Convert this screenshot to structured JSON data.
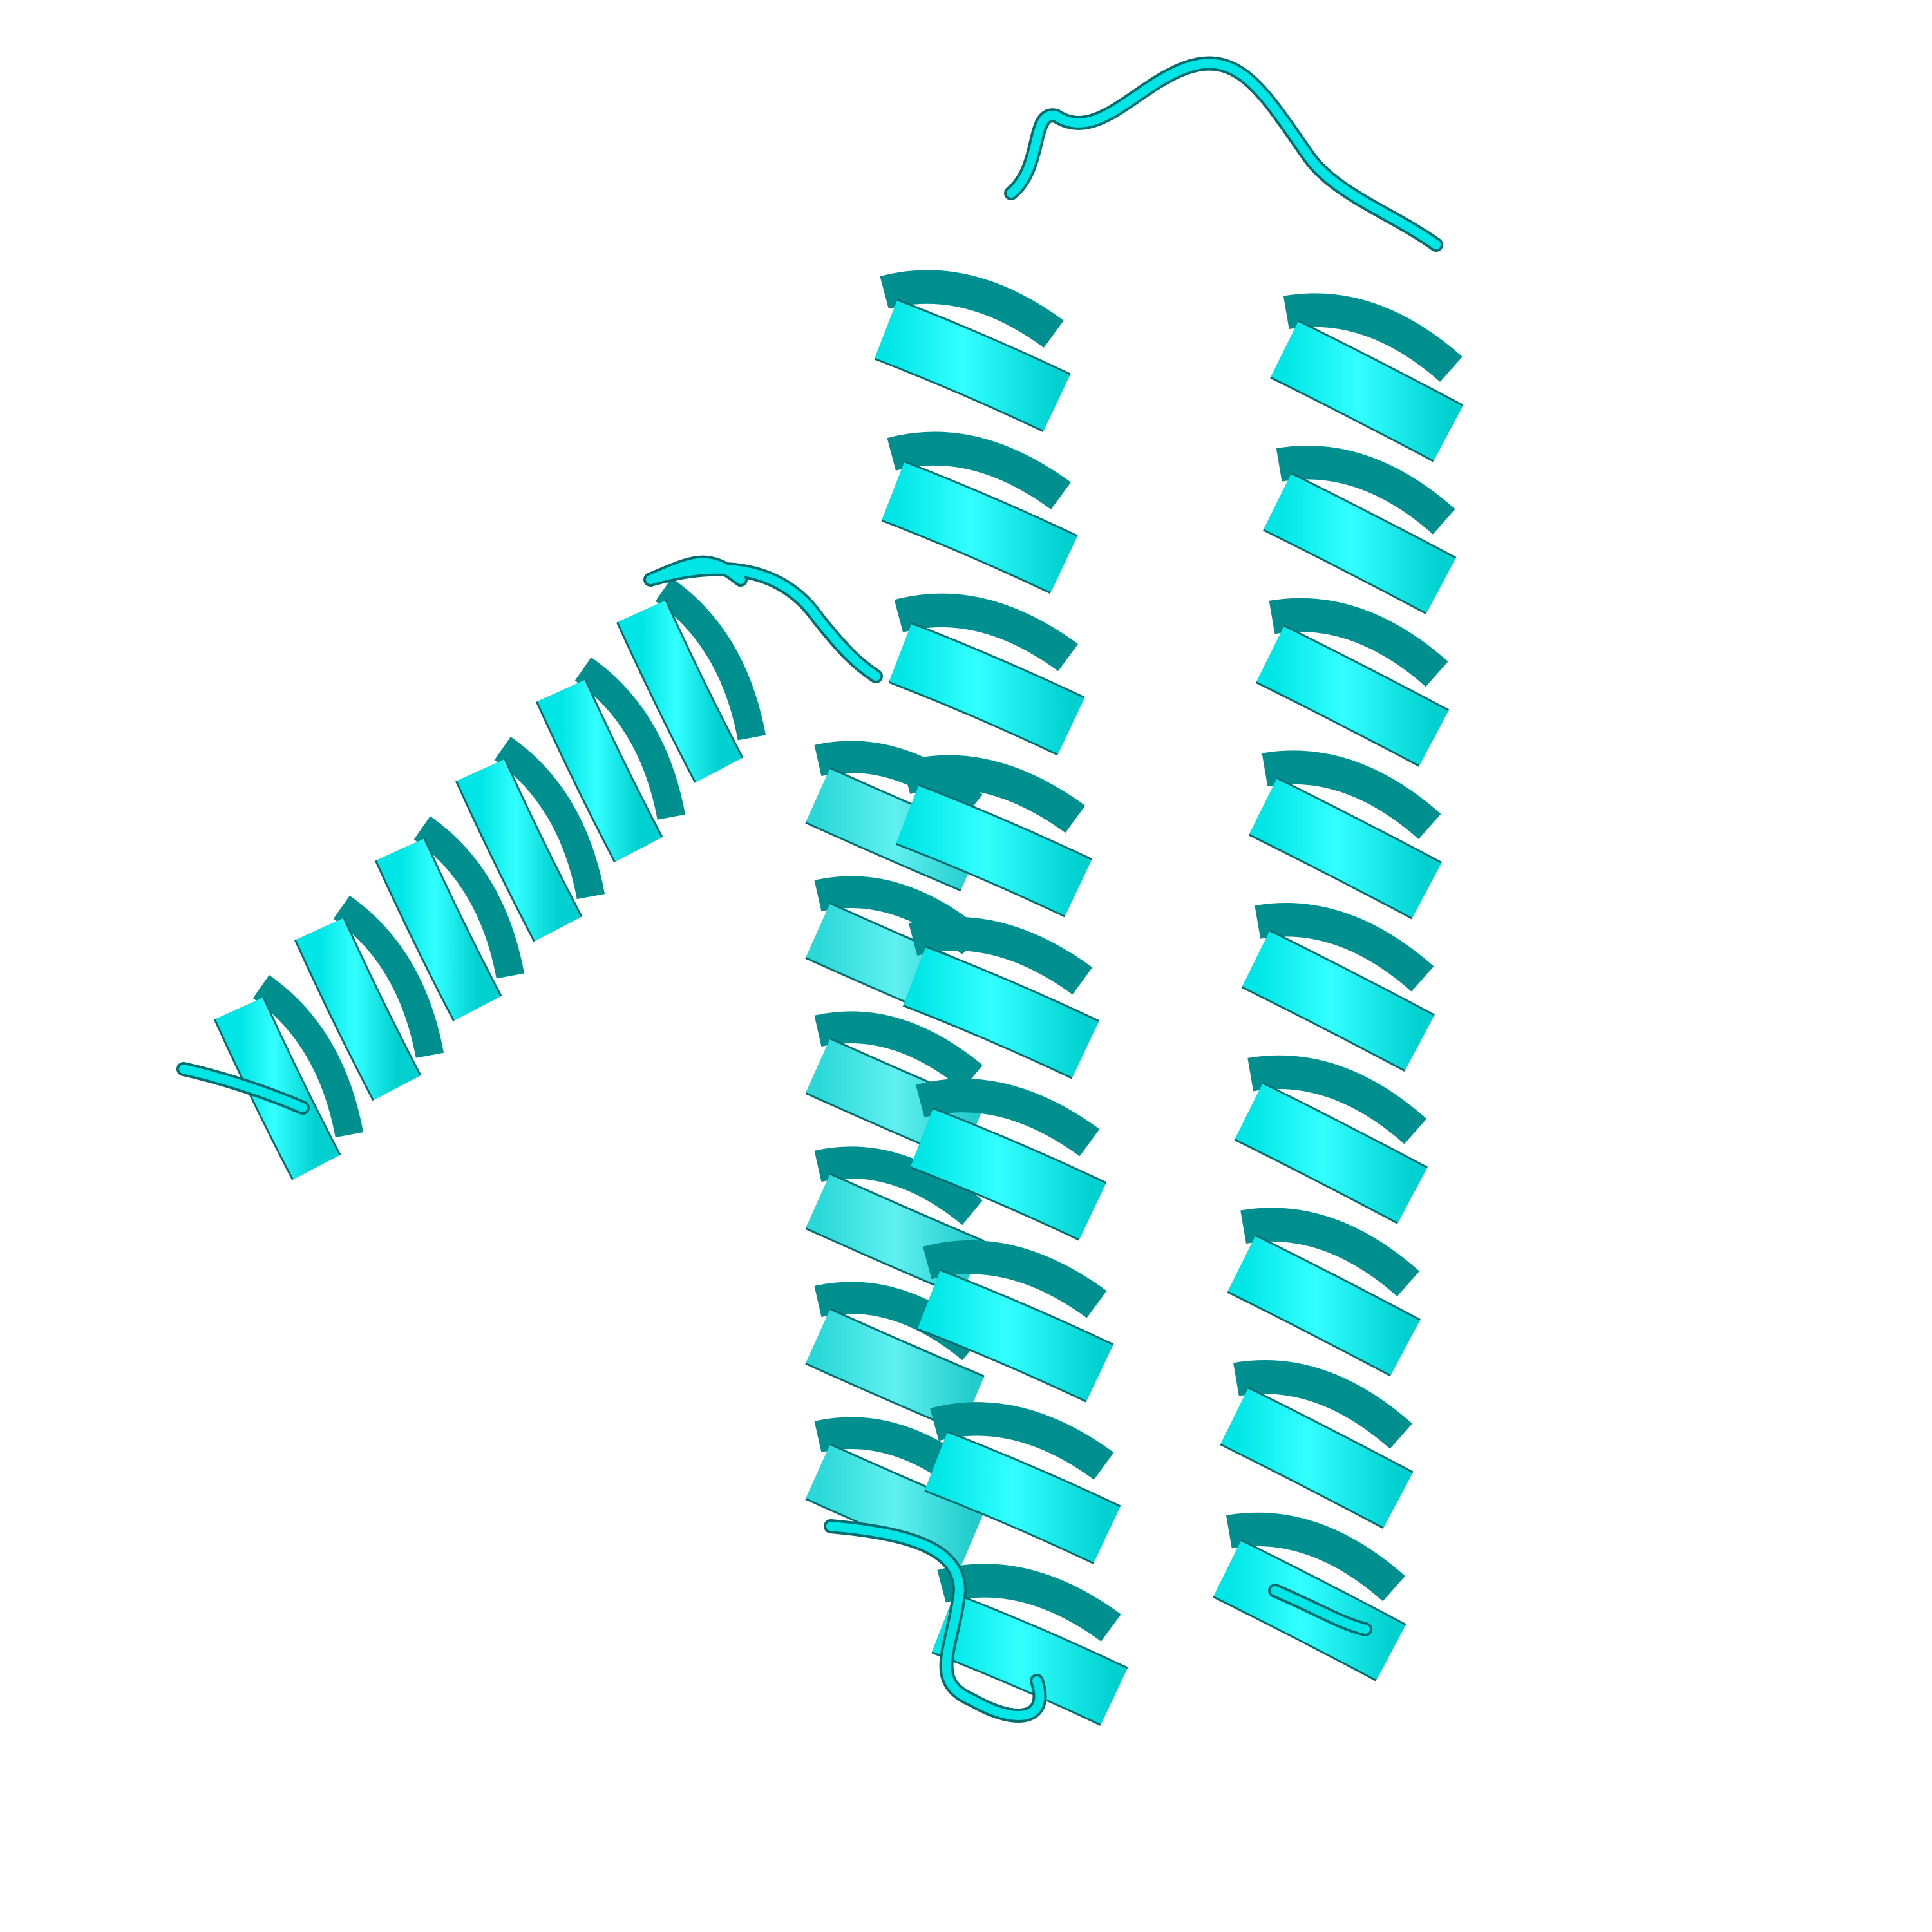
{
  "scene": {
    "subject": "protein-cartoon",
    "style": "ribbon",
    "background": "#ffffff"
  },
  "colors": {
    "ribbon_main": "#00e5e5",
    "ribbon_highlight": "#33ffff",
    "ribbon_back": "#2ad8d8",
    "ribbon_edge": "#006e6e",
    "ribbon_shadow": "#008f8f",
    "background": "#ffffff"
  },
  "elements": [
    {
      "name": "helix-tilted",
      "kind": "helix",
      "turns": 6
    },
    {
      "name": "helix-back",
      "kind": "helix",
      "turns": 6
    },
    {
      "name": "helix-front",
      "kind": "helix",
      "turns": 9
    },
    {
      "name": "helix-right",
      "kind": "helix",
      "turns": 9
    },
    {
      "name": "loop-top",
      "kind": "loop"
    },
    {
      "name": "loop-tilted-to-back",
      "kind": "loop"
    },
    {
      "name": "loop-bottom",
      "kind": "loop"
    },
    {
      "name": "c-terminal-tail",
      "kind": "loop"
    }
  ]
}
